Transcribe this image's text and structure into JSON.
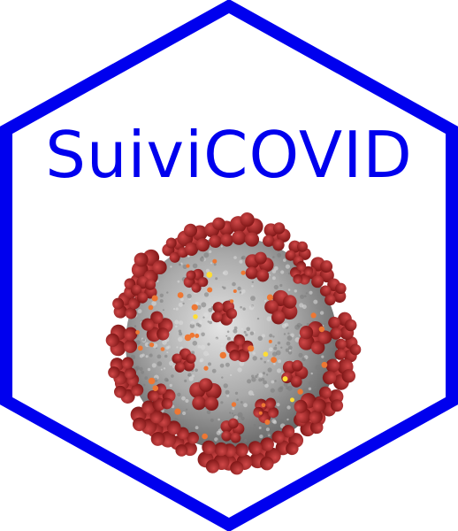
{
  "logo": {
    "title": "SuiviCOVID",
    "icon": "coronavirus-icon"
  },
  "colors": {
    "border": "#0000ee",
    "title": "#0000ee",
    "background": "#ffffff",
    "spike": "#b02a2a",
    "spike_dark": "#7a1414",
    "virus_body": "#b8b8b8",
    "virus_shadow": "#6e6e6e",
    "dot_orange": "#ee7733",
    "dot_yellow": "#ffdd33"
  }
}
